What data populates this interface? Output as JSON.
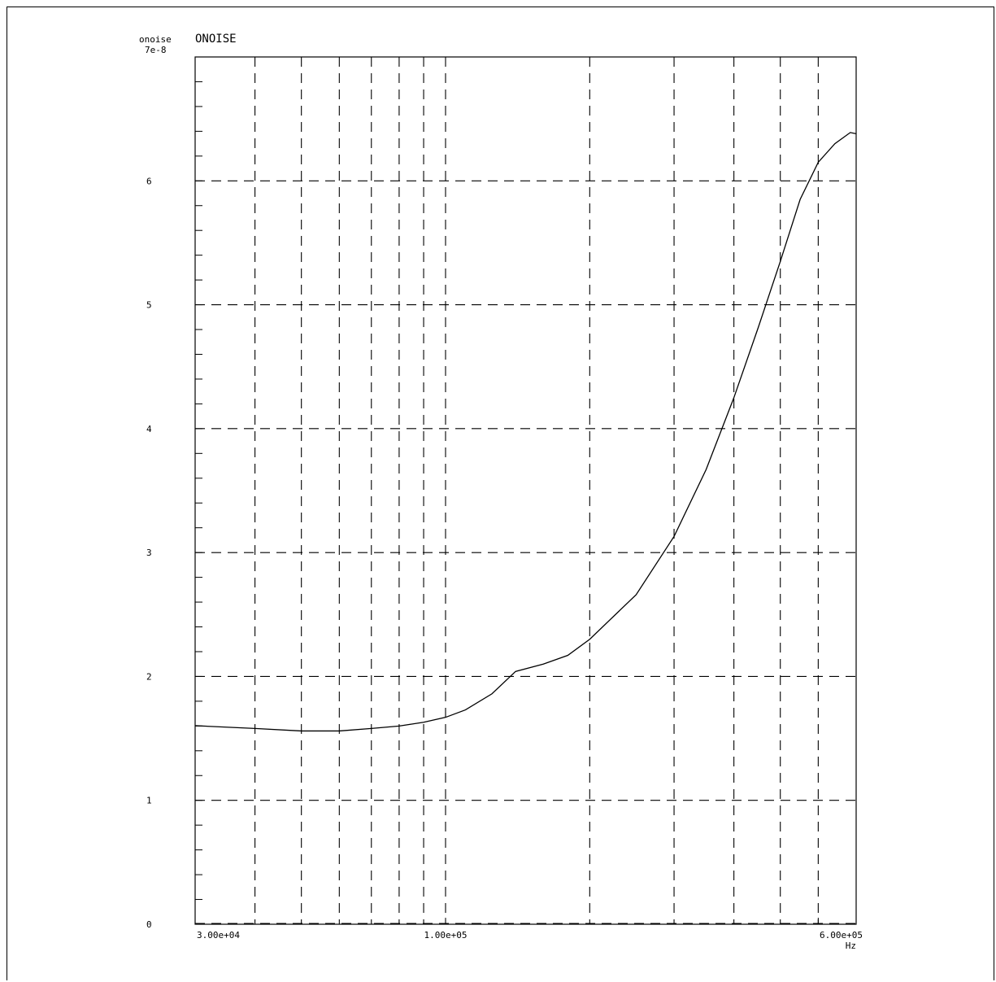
{
  "chart_data": {
    "type": "line",
    "title": "ONOISE",
    "ylabel": "onoise",
    "xlabel": "Hz",
    "x_scale": "log",
    "xlim": [
      30000,
      720000
    ],
    "ylim": [
      0,
      7e-08
    ],
    "y_exponent_label": "7e-8",
    "x_ticks": [
      {
        "value": 30000,
        "label": "3.00e+04"
      },
      {
        "value": 100000,
        "label": "1.00e+05"
      },
      {
        "value": 600000,
        "label": "6.00e+05"
      }
    ],
    "x_gridlines": [
      40000,
      50000,
      60000,
      70000,
      80000,
      90000,
      100000,
      200000,
      300000,
      400000,
      500000,
      600000
    ],
    "y_ticks": [
      {
        "value": 0,
        "label": "0"
      },
      {
        "value": 1e-08,
        "label": "1"
      },
      {
        "value": 2e-08,
        "label": "2"
      },
      {
        "value": 3e-08,
        "label": "3"
      },
      {
        "value": 4e-08,
        "label": "4"
      },
      {
        "value": 5e-08,
        "label": "5"
      },
      {
        "value": 6e-08,
        "label": "6"
      }
    ],
    "grid": true,
    "series": [
      {
        "color": "#000000",
        "x": [
          24000,
          40000,
          50000,
          60000,
          70000,
          80000,
          90000,
          100000,
          110000,
          125000,
          140000,
          160000,
          180000,
          200000,
          250000,
          300000,
          350000,
          400000,
          450000,
          500000,
          550000,
          600000,
          650000,
          700000,
          720000
        ],
        "y": [
          1.62e-08,
          1.58e-08,
          1.56e-08,
          1.56e-08,
          1.58e-08,
          1.6e-08,
          1.63e-08,
          1.67e-08,
          1.73e-08,
          1.86e-08,
          2.04e-08,
          2.1e-08,
          2.17e-08,
          2.3e-08,
          2.66e-08,
          3.13e-08,
          3.67e-08,
          4.25e-08,
          4.82e-08,
          5.35e-08,
          5.85e-08,
          6.15e-08,
          6.3e-08,
          6.39e-08,
          6.38e-08
        ]
      }
    ]
  }
}
